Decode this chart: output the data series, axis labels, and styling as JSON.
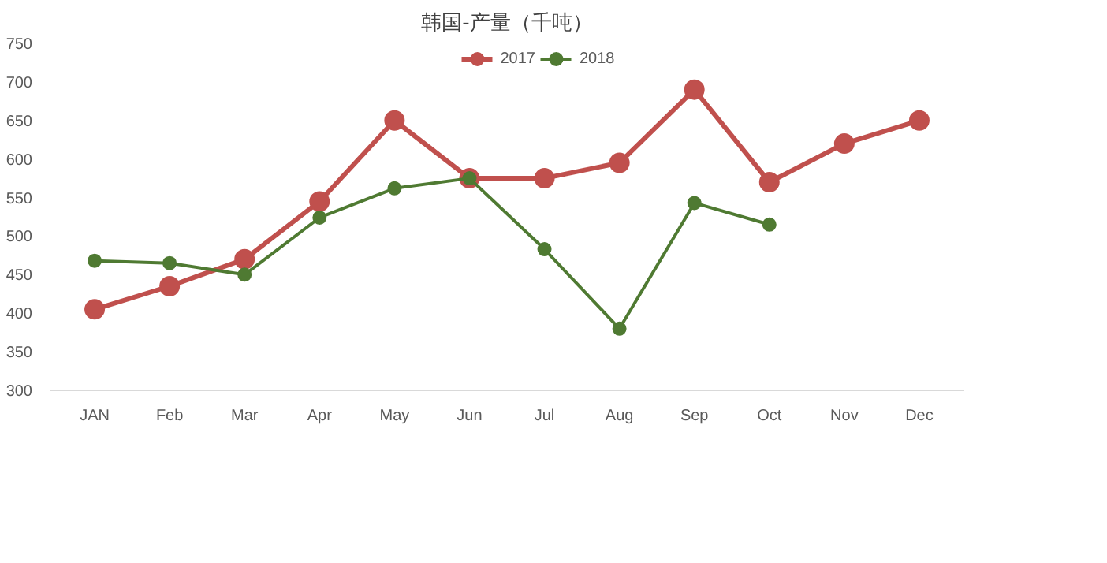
{
  "chart_data": {
    "type": "line",
    "title": "韩国-产量（千吨）",
    "categories": [
      "JAN",
      "Feb",
      "Mar",
      "Apr",
      "May",
      "Jun",
      "Jul",
      "Aug",
      "Sep",
      "Oct",
      "Nov",
      "Dec"
    ],
    "series": [
      {
        "name": "2017",
        "color": "#c0504d",
        "values": [
          405,
          435,
          470,
          545,
          650,
          575,
          575,
          595,
          690,
          570,
          620,
          650
        ]
      },
      {
        "name": "2018",
        "color": "#4f7a32",
        "values": [
          468,
          465,
          450,
          524,
          562,
          575,
          483,
          380,
          543,
          515,
          null,
          null
        ]
      }
    ],
    "ylim": [
      300,
      750
    ],
    "yticks": [
      300,
      350,
      400,
      450,
      500,
      550,
      600,
      650,
      700,
      750
    ],
    "grid": false,
    "legend": "top",
    "marker": "circle",
    "line_style": "solid"
  }
}
